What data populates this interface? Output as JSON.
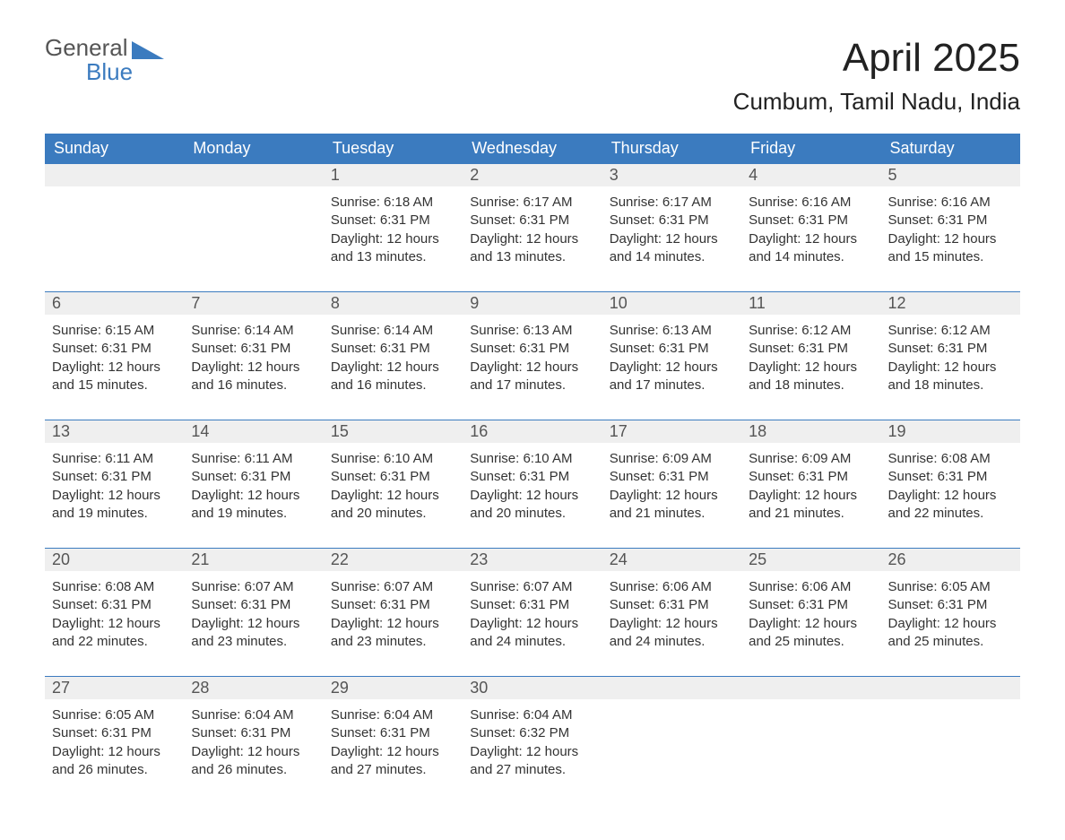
{
  "logo": {
    "line1": "General",
    "line2": "Blue"
  },
  "title": "April 2025",
  "location": "Cumbum, Tamil Nadu, India",
  "colors": {
    "header_bg": "#3b7bbf",
    "header_fg": "#ffffff",
    "daynum_bg": "#efefef",
    "daynum_fg": "#555555",
    "text": "#333333",
    "rule": "#3b7bbf",
    "logo_gray": "#555555",
    "logo_blue": "#3b7bbf",
    "page_bg": "#ffffff"
  },
  "typography": {
    "month_title_pt": 44,
    "location_pt": 26,
    "weekday_pt": 18,
    "daynum_pt": 18,
    "body_pt": 15,
    "logo_pt": 26,
    "family": "Arial"
  },
  "weekdays": [
    "Sunday",
    "Monday",
    "Tuesday",
    "Wednesday",
    "Thursday",
    "Friday",
    "Saturday"
  ],
  "weeks": [
    [
      null,
      null,
      {
        "n": "1",
        "sunrise": "6:18 AM",
        "sunset": "6:31 PM",
        "daylight": "12 hours and 13 minutes."
      },
      {
        "n": "2",
        "sunrise": "6:17 AM",
        "sunset": "6:31 PM",
        "daylight": "12 hours and 13 minutes."
      },
      {
        "n": "3",
        "sunrise": "6:17 AM",
        "sunset": "6:31 PM",
        "daylight": "12 hours and 14 minutes."
      },
      {
        "n": "4",
        "sunrise": "6:16 AM",
        "sunset": "6:31 PM",
        "daylight": "12 hours and 14 minutes."
      },
      {
        "n": "5",
        "sunrise": "6:16 AM",
        "sunset": "6:31 PM",
        "daylight": "12 hours and 15 minutes."
      }
    ],
    [
      {
        "n": "6",
        "sunrise": "6:15 AM",
        "sunset": "6:31 PM",
        "daylight": "12 hours and 15 minutes."
      },
      {
        "n": "7",
        "sunrise": "6:14 AM",
        "sunset": "6:31 PM",
        "daylight": "12 hours and 16 minutes."
      },
      {
        "n": "8",
        "sunrise": "6:14 AM",
        "sunset": "6:31 PM",
        "daylight": "12 hours and 16 minutes."
      },
      {
        "n": "9",
        "sunrise": "6:13 AM",
        "sunset": "6:31 PM",
        "daylight": "12 hours and 17 minutes."
      },
      {
        "n": "10",
        "sunrise": "6:13 AM",
        "sunset": "6:31 PM",
        "daylight": "12 hours and 17 minutes."
      },
      {
        "n": "11",
        "sunrise": "6:12 AM",
        "sunset": "6:31 PM",
        "daylight": "12 hours and 18 minutes."
      },
      {
        "n": "12",
        "sunrise": "6:12 AM",
        "sunset": "6:31 PM",
        "daylight": "12 hours and 18 minutes."
      }
    ],
    [
      {
        "n": "13",
        "sunrise": "6:11 AM",
        "sunset": "6:31 PM",
        "daylight": "12 hours and 19 minutes."
      },
      {
        "n": "14",
        "sunrise": "6:11 AM",
        "sunset": "6:31 PM",
        "daylight": "12 hours and 19 minutes."
      },
      {
        "n": "15",
        "sunrise": "6:10 AM",
        "sunset": "6:31 PM",
        "daylight": "12 hours and 20 minutes."
      },
      {
        "n": "16",
        "sunrise": "6:10 AM",
        "sunset": "6:31 PM",
        "daylight": "12 hours and 20 minutes."
      },
      {
        "n": "17",
        "sunrise": "6:09 AM",
        "sunset": "6:31 PM",
        "daylight": "12 hours and 21 minutes."
      },
      {
        "n": "18",
        "sunrise": "6:09 AM",
        "sunset": "6:31 PM",
        "daylight": "12 hours and 21 minutes."
      },
      {
        "n": "19",
        "sunrise": "6:08 AM",
        "sunset": "6:31 PM",
        "daylight": "12 hours and 22 minutes."
      }
    ],
    [
      {
        "n": "20",
        "sunrise": "6:08 AM",
        "sunset": "6:31 PM",
        "daylight": "12 hours and 22 minutes."
      },
      {
        "n": "21",
        "sunrise": "6:07 AM",
        "sunset": "6:31 PM",
        "daylight": "12 hours and 23 minutes."
      },
      {
        "n": "22",
        "sunrise": "6:07 AM",
        "sunset": "6:31 PM",
        "daylight": "12 hours and 23 minutes."
      },
      {
        "n": "23",
        "sunrise": "6:07 AM",
        "sunset": "6:31 PM",
        "daylight": "12 hours and 24 minutes."
      },
      {
        "n": "24",
        "sunrise": "6:06 AM",
        "sunset": "6:31 PM",
        "daylight": "12 hours and 24 minutes."
      },
      {
        "n": "25",
        "sunrise": "6:06 AM",
        "sunset": "6:31 PM",
        "daylight": "12 hours and 25 minutes."
      },
      {
        "n": "26",
        "sunrise": "6:05 AM",
        "sunset": "6:31 PM",
        "daylight": "12 hours and 25 minutes."
      }
    ],
    [
      {
        "n": "27",
        "sunrise": "6:05 AM",
        "sunset": "6:31 PM",
        "daylight": "12 hours and 26 minutes."
      },
      {
        "n": "28",
        "sunrise": "6:04 AM",
        "sunset": "6:31 PM",
        "daylight": "12 hours and 26 minutes."
      },
      {
        "n": "29",
        "sunrise": "6:04 AM",
        "sunset": "6:31 PM",
        "daylight": "12 hours and 27 minutes."
      },
      {
        "n": "30",
        "sunrise": "6:04 AM",
        "sunset": "6:32 PM",
        "daylight": "12 hours and 27 minutes."
      },
      null,
      null,
      null
    ]
  ],
  "labels": {
    "sunrise": "Sunrise:",
    "sunset": "Sunset:",
    "daylight": "Daylight:"
  }
}
